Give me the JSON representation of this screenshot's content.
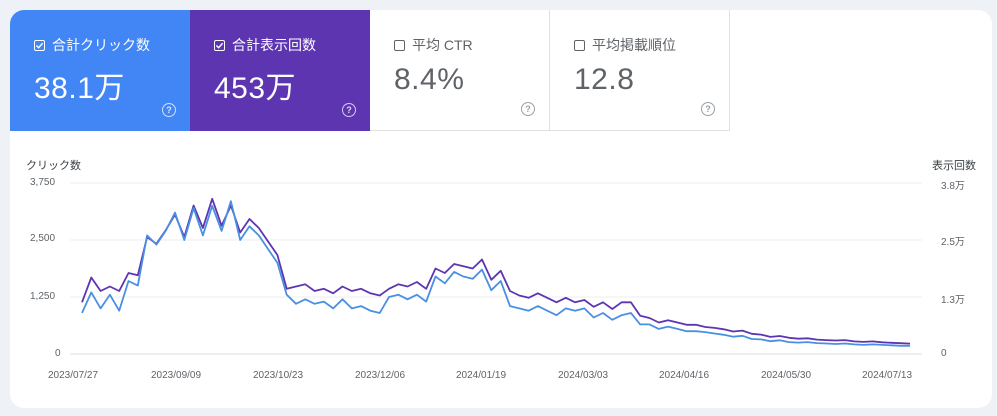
{
  "tiles": [
    {
      "label": "合計クリック数",
      "value": "38.1万",
      "checked": true,
      "color": "#4285f4"
    },
    {
      "label": "合計表示回数",
      "value": "453万",
      "checked": true,
      "color": "#5e35b1"
    },
    {
      "label": "平均 CTR",
      "value": "8.4%",
      "checked": false
    },
    {
      "label": "平均掲載順位",
      "value": "12.8",
      "checked": false
    }
  ],
  "chart_data": {
    "type": "line",
    "y_left_label": "クリック数",
    "y_right_label": "表示回数",
    "y_left_ticks": [
      "3,750",
      "2,500",
      "1,250",
      "0"
    ],
    "y_right_ticks": [
      "3.8万",
      "2.5万",
      "1.3万",
      "0"
    ],
    "x_ticks": [
      "2023/07/27",
      "2023/09/09",
      "2023/10/23",
      "2023/12/06",
      "2024/01/19",
      "2024/03/03",
      "2024/04/16",
      "2024/05/30",
      "2024/07/13"
    ],
    "y_left_range": [
      0,
      3750
    ],
    "y_right_range": [
      0,
      38000
    ],
    "series": [
      {
        "axis": "left",
        "color": "#4a90e2",
        "values": [
          900,
          1350,
          1000,
          1300,
          950,
          1600,
          1500,
          2600,
          2400,
          2700,
          3100,
          2500,
          3200,
          2600,
          3250,
          2700,
          3350,
          2500,
          2800,
          2600,
          2300,
          2000,
          1300,
          1100,
          1200,
          1100,
          1150,
          1000,
          1200,
          1000,
          1050,
          950,
          900,
          1250,
          1300,
          1200,
          1300,
          1150,
          1700,
          1550,
          1800,
          1700,
          1650,
          1850,
          1400,
          1600,
          1050,
          1000,
          950,
          1050,
          950,
          850,
          1000,
          950,
          1000,
          800,
          900,
          750,
          850,
          900,
          650,
          650,
          550,
          600,
          550,
          500,
          500,
          480,
          450,
          420,
          380,
          400,
          330,
          320,
          280,
          300,
          260,
          250,
          260,
          240,
          230,
          220,
          230,
          210,
          200,
          210,
          200,
          190,
          180,
          180
        ]
      },
      {
        "axis": "right",
        "color": "#5e35b1",
        "values": [
          11500,
          17000,
          14000,
          15000,
          14000,
          18000,
          17500,
          26000,
          24500,
          27500,
          31000,
          26000,
          33000,
          28000,
          34500,
          28500,
          33000,
          27000,
          30000,
          28000,
          25000,
          22000,
          14500,
          15000,
          15500,
          14000,
          14500,
          13500,
          15000,
          14000,
          14500,
          13500,
          13000,
          14500,
          15500,
          15000,
          16000,
          14500,
          19000,
          18000,
          20000,
          19500,
          19000,
          21000,
          16500,
          18500,
          14000,
          13000,
          12500,
          13500,
          12500,
          11500,
          12500,
          11500,
          12000,
          10500,
          11500,
          10000,
          11500,
          11500,
          8500,
          8000,
          7000,
          7500,
          7000,
          6500,
          6500,
          6000,
          5800,
          5500,
          5000,
          5200,
          4500,
          4300,
          3800,
          4000,
          3600,
          3400,
          3500,
          3200,
          3100,
          3000,
          3100,
          2800,
          2700,
          2800,
          2600,
          2500,
          2400,
          2300
        ]
      }
    ]
  }
}
